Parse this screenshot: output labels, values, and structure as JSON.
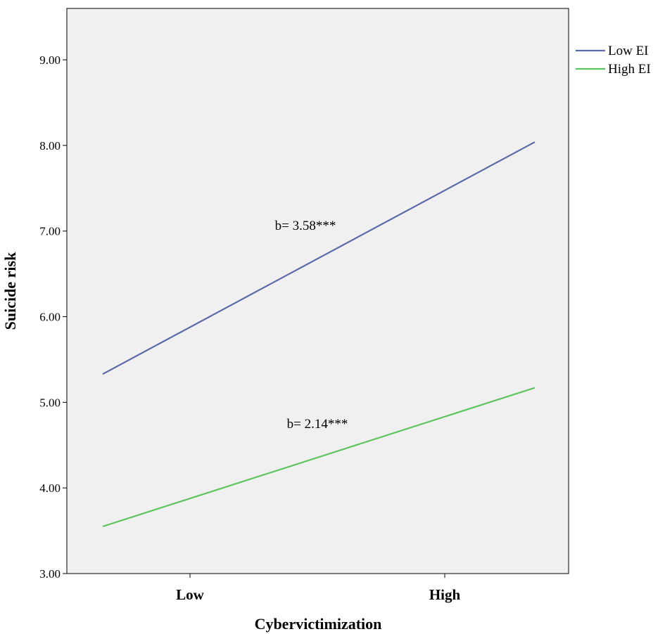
{
  "chart_data": {
    "type": "line",
    "title": "",
    "xlabel": "Cybervictimization",
    "ylabel": "Suicide risk",
    "categories": [
      "Low",
      "High"
    ],
    "ylim": [
      3.0,
      9.6
    ],
    "yticks": [
      "3.00",
      "4.00",
      "5.00",
      "6.00",
      "7.00",
      "8.00",
      "9.00"
    ],
    "ytick_values": [
      3,
      4,
      5,
      6,
      7,
      8,
      9
    ],
    "grid": false,
    "legend": "right-top",
    "series": [
      {
        "name": "Low EI",
        "values": [
          5.33,
          8.04
        ],
        "color": "#5b6aa8",
        "annotation": "b= 3.58***"
      },
      {
        "name": "High EI",
        "values": [
          3.55,
          5.17
        ],
        "color": "#5ec45e",
        "annotation": "b= 2.14***"
      }
    ],
    "plot_background": "#f0f0f0"
  }
}
